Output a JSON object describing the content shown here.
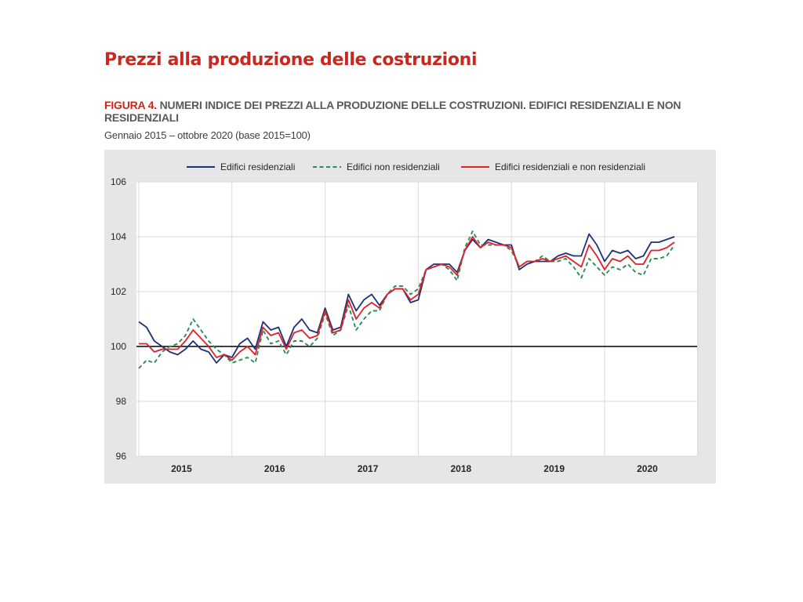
{
  "slide": {
    "title": "Prezzi alla produzione delle costruzioni"
  },
  "figure": {
    "label": "FIGURA 4.",
    "title": "NUMERI INDICE DEI PREZZI ALLA PRODUZIONE DELLE COSTRUZIONI. EDIFICI RESIDENZIALI E NON RESIDENZIALI",
    "subtitle": "Gennaio 2015 – ottobre 2020 (base 2015=100)"
  },
  "colors": {
    "plot_bg": "#ffffff",
    "frame_bg": "#e6e6e6",
    "grid": "#d9d9d9",
    "baseline": "#000000"
  },
  "chart_data": {
    "type": "line",
    "title": "NUMERI INDICE DEI PREZZI ALLA PRODUZIONE DELLE COSTRUZIONI. EDIFICI RESIDENZIALI E NON RESIDENZIALI",
    "xlabel": "",
    "ylabel": "",
    "x_start": "2015-01",
    "x_end": "2020-10",
    "x_tick_labels": [
      "2015",
      "2016",
      "2017",
      "2018",
      "2019",
      "2020"
    ],
    "ylim": [
      96,
      106
    ],
    "y_ticks": [
      96,
      98,
      100,
      102,
      104,
      106
    ],
    "reference_line": 100,
    "grid": true,
    "legend_position": "top",
    "series": [
      {
        "name": "Edifici residenziali",
        "color": "#1f3178",
        "dash": "solid",
        "values": [
          100.9,
          100.7,
          100.2,
          100.0,
          99.8,
          99.7,
          99.9,
          100.2,
          99.9,
          99.8,
          99.4,
          99.7,
          99.6,
          100.1,
          100.3,
          99.9,
          100.9,
          100.6,
          100.7,
          100.0,
          100.7,
          101.0,
          100.6,
          100.5,
          101.4,
          100.6,
          100.7,
          101.9,
          101.3,
          101.7,
          101.9,
          101.5,
          101.9,
          102.1,
          102.1,
          101.6,
          101.7,
          102.8,
          103.0,
          103.0,
          103.0,
          102.7,
          103.5,
          103.9,
          103.6,
          103.9,
          103.8,
          103.7,
          103.7,
          102.8,
          103.0,
          103.1,
          103.1,
          103.1,
          103.3,
          103.4,
          103.3,
          103.3,
          104.1,
          103.7,
          103.1,
          103.5,
          103.4,
          103.5,
          103.2,
          103.3,
          103.8,
          103.8,
          103.9,
          104.0
        ]
      },
      {
        "name": "Edifici non residenziali",
        "color": "#2e8b57",
        "dash": "dashed",
        "values": [
          99.2,
          99.5,
          99.4,
          99.8,
          100.0,
          100.1,
          100.4,
          101.0,
          100.6,
          100.2,
          99.9,
          99.7,
          99.4,
          99.5,
          99.6,
          99.4,
          100.6,
          100.1,
          100.2,
          99.7,
          100.2,
          100.2,
          100.0,
          100.3,
          101.2,
          100.4,
          100.6,
          101.5,
          100.6,
          101.0,
          101.3,
          101.3,
          101.9,
          102.2,
          102.2,
          101.9,
          102.1,
          102.8,
          102.9,
          103.0,
          102.8,
          102.4,
          103.6,
          104.2,
          103.7,
          103.7,
          103.7,
          103.7,
          103.5,
          102.9,
          103.1,
          103.1,
          103.3,
          103.1,
          103.1,
          103.2,
          102.9,
          102.5,
          103.2,
          102.9,
          102.6,
          102.9,
          102.8,
          103.0,
          102.7,
          102.6,
          103.2,
          103.2,
          103.3,
          103.7
        ]
      },
      {
        "name": "Edifici residenziali e non residenziali",
        "color": "#e0202a",
        "dash": "solid",
        "values": [
          100.1,
          100.1,
          99.8,
          99.9,
          99.9,
          99.9,
          100.2,
          100.6,
          100.3,
          100.0,
          99.6,
          99.7,
          99.5,
          99.8,
          100.0,
          99.7,
          100.7,
          100.4,
          100.5,
          99.9,
          100.5,
          100.6,
          100.3,
          100.4,
          101.3,
          100.5,
          100.6,
          101.7,
          101.0,
          101.4,
          101.6,
          101.4,
          101.9,
          102.1,
          102.1,
          101.7,
          101.9,
          102.8,
          102.9,
          103.0,
          102.9,
          102.6,
          103.5,
          104.0,
          103.6,
          103.8,
          103.7,
          103.7,
          103.6,
          102.9,
          103.1,
          103.1,
          103.2,
          103.1,
          103.2,
          103.3,
          103.1,
          102.9,
          103.7,
          103.3,
          102.8,
          103.2,
          103.1,
          103.3,
          103.0,
          103.0,
          103.5,
          103.5,
          103.6,
          103.8
        ]
      }
    ]
  }
}
